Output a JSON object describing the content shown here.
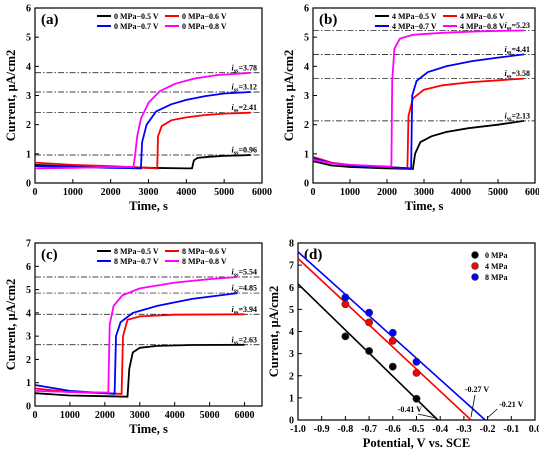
{
  "chart_data": [
    {
      "type": "line",
      "panel_label": "(a)",
      "xlabel": "Time, s",
      "ylabel": "Current, μA/cm2",
      "xlim": [
        0,
        6000
      ],
      "ylim": [
        0,
        6
      ],
      "xticks": [
        0,
        1000,
        2000,
        3000,
        4000,
        5000,
        6000
      ],
      "yticks": [
        0,
        1,
        2,
        3,
        4,
        5,
        6
      ],
      "legend_position": "top",
      "series": [
        {
          "name": "0 MPa−0.5 V",
          "color": "#000000",
          "points": [
            [
              0,
              0.62
            ],
            [
              1000,
              0.57
            ],
            [
              2000,
              0.54
            ],
            [
              3000,
              0.52
            ],
            [
              4000,
              0.5
            ],
            [
              4150,
              0.5
            ],
            [
              4200,
              0.78
            ],
            [
              4300,
              0.86
            ],
            [
              4600,
              0.9
            ],
            [
              5000,
              0.93
            ],
            [
              5500,
              0.95
            ],
            [
              5700,
              0.96
            ]
          ]
        },
        {
          "name": "0 MPa−0.6 V",
          "color": "#ff0000",
          "points": [
            [
              0,
              0.7
            ],
            [
              1000,
              0.62
            ],
            [
              2000,
              0.58
            ],
            [
              3000,
              0.52
            ],
            [
              3230,
              0.5
            ],
            [
              3250,
              1.6
            ],
            [
              3350,
              1.95
            ],
            [
              3600,
              2.15
            ],
            [
              4000,
              2.25
            ],
            [
              4500,
              2.33
            ],
            [
              5000,
              2.38
            ],
            [
              5700,
              2.41
            ]
          ]
        },
        {
          "name": "0 MPa−0.7 V",
          "color": "#0000ff",
          "points": [
            [
              0,
              0.58
            ],
            [
              1000,
              0.55
            ],
            [
              2000,
              0.52
            ],
            [
              2800,
              0.5
            ],
            [
              2830,
              1.4
            ],
            [
              2950,
              2.0
            ],
            [
              3200,
              2.45
            ],
            [
              3600,
              2.7
            ],
            [
              4000,
              2.85
            ],
            [
              4500,
              2.98
            ],
            [
              5000,
              3.07
            ],
            [
              5700,
              3.12
            ]
          ]
        },
        {
          "name": "0 MPa−0.8 V",
          "color": "#ff00ff",
          "points": [
            [
              0,
              0.5
            ],
            [
              1000,
              0.52
            ],
            [
              2000,
              0.55
            ],
            [
              2600,
              0.55
            ],
            [
              2640,
              0.9
            ],
            [
              2700,
              1.6
            ],
            [
              2800,
              2.2
            ],
            [
              3000,
              2.75
            ],
            [
              3300,
              3.15
            ],
            [
              3700,
              3.4
            ],
            [
              4200,
              3.58
            ],
            [
              4800,
              3.7
            ],
            [
              5700,
              3.78
            ]
          ]
        }
      ],
      "reference_lines": [
        0.96,
        2.41,
        3.12,
        3.78
      ],
      "annotations": [
        {
          "prefix": "i",
          "sub": "ss",
          "text": "=3.78",
          "y": 3.78
        },
        {
          "prefix": "i",
          "sub": "ss",
          "text": "=3.12",
          "y": 3.12
        },
        {
          "prefix": "i",
          "sub": "ss",
          "text": "=2.41",
          "y": 2.41
        },
        {
          "prefix": "i",
          "sub": "ss",
          "text": "=0.96",
          "y": 0.96
        }
      ]
    },
    {
      "type": "line",
      "panel_label": "(b)",
      "xlabel": "Time, s",
      "ylabel": "Current, μA/cm2",
      "xlim": [
        0,
        6000
      ],
      "ylim": [
        0,
        6
      ],
      "xticks": [
        0,
        1000,
        2000,
        3000,
        4000,
        5000,
        6000
      ],
      "yticks": [
        0,
        1,
        2,
        3,
        4,
        5,
        6
      ],
      "legend_position": "top",
      "series": [
        {
          "name": "4 MPa−0.5 V",
          "color": "#000000",
          "points": [
            [
              0,
              0.75
            ],
            [
              500,
              0.6
            ],
            [
              1000,
              0.55
            ],
            [
              2000,
              0.5
            ],
            [
              2700,
              0.48
            ],
            [
              2760,
              1.0
            ],
            [
              2900,
              1.4
            ],
            [
              3200,
              1.6
            ],
            [
              3600,
              1.75
            ],
            [
              4200,
              1.88
            ],
            [
              5000,
              2.0
            ],
            [
              5700,
              2.13
            ]
          ]
        },
        {
          "name": "4 MPa−0.6 V",
          "color": "#ff0000",
          "points": [
            [
              0,
              0.9
            ],
            [
              500,
              0.7
            ],
            [
              1000,
              0.62
            ],
            [
              2000,
              0.55
            ],
            [
              2550,
              0.5
            ],
            [
              2580,
              2.3
            ],
            [
              2700,
              2.9
            ],
            [
              3000,
              3.2
            ],
            [
              3500,
              3.35
            ],
            [
              4200,
              3.45
            ],
            [
              5000,
              3.52
            ],
            [
              5700,
              3.58
            ]
          ]
        },
        {
          "name": "4 MPa−0.7 V",
          "color": "#0000ff",
          "points": [
            [
              0,
              0.85
            ],
            [
              500,
              0.68
            ],
            [
              1000,
              0.6
            ],
            [
              2000,
              0.55
            ],
            [
              2650,
              0.5
            ],
            [
              2680,
              3.0
            ],
            [
              2800,
              3.5
            ],
            [
              3100,
              3.8
            ],
            [
              3600,
              4.0
            ],
            [
              4300,
              4.18
            ],
            [
              5000,
              4.3
            ],
            [
              5700,
              4.41
            ]
          ]
        },
        {
          "name": "4 MPa−0.8 V",
          "color": "#ff00ff",
          "points": [
            [
              0,
              0.8
            ],
            [
              500,
              0.68
            ],
            [
              1000,
              0.62
            ],
            [
              1800,
              0.58
            ],
            [
              2120,
              0.56
            ],
            [
              2140,
              3.5
            ],
            [
              2200,
              4.6
            ],
            [
              2350,
              4.95
            ],
            [
              2700,
              5.08
            ],
            [
              3500,
              5.15
            ],
            [
              4500,
              5.2
            ],
            [
              5700,
              5.23
            ]
          ]
        }
      ],
      "reference_lines": [
        2.13,
        3.58,
        4.41,
        5.23
      ],
      "annotations": [
        {
          "prefix": "i",
          "sub": "ss",
          "text": "=5.23",
          "y": 5.23
        },
        {
          "prefix": "i",
          "sub": "ss",
          "text": "=4.41",
          "y": 4.41
        },
        {
          "prefix": "i",
          "sub": "ss",
          "text": "=3.58",
          "y": 3.58
        },
        {
          "prefix": "i",
          "sub": "ss",
          "text": "=2.13",
          "y": 2.13
        }
      ]
    },
    {
      "type": "line",
      "panel_label": "(c)",
      "xlabel": "Time, s",
      "ylabel": "Current, μA/cm2",
      "xlim": [
        0,
        6500
      ],
      "ylim": [
        0,
        7
      ],
      "xticks": [
        0,
        1000,
        2000,
        3000,
        4000,
        5000,
        6000
      ],
      "yticks": [
        0,
        1,
        2,
        3,
        4,
        5,
        6,
        7
      ],
      "legend_position": "top",
      "series": [
        {
          "name": "8 MPa−0.5 V",
          "color": "#000000",
          "points": [
            [
              0,
              0.55
            ],
            [
              1000,
              0.45
            ],
            [
              2000,
              0.42
            ],
            [
              2650,
              0.4
            ],
            [
              2700,
              1.6
            ],
            [
              2800,
              2.3
            ],
            [
              3000,
              2.5
            ],
            [
              3500,
              2.58
            ],
            [
              4500,
              2.62
            ],
            [
              6000,
              2.63
            ]
          ]
        },
        {
          "name": "8 MPa−0.6 V",
          "color": "#ff0000",
          "points": [
            [
              0,
              0.75
            ],
            [
              1000,
              0.6
            ],
            [
              2000,
              0.55
            ],
            [
              2480,
              0.52
            ],
            [
              2520,
              3.0
            ],
            [
              2650,
              3.7
            ],
            [
              3000,
              3.85
            ],
            [
              4000,
              3.92
            ],
            [
              6000,
              3.94
            ]
          ]
        },
        {
          "name": "8 MPa−0.7 V",
          "color": "#0000ff",
          "points": [
            [
              0,
              0.9
            ],
            [
              1000,
              0.65
            ],
            [
              2000,
              0.55
            ],
            [
              2280,
              0.52
            ],
            [
              2320,
              3.0
            ],
            [
              2450,
              3.6
            ],
            [
              2800,
              4.0
            ],
            [
              3500,
              4.3
            ],
            [
              4500,
              4.6
            ],
            [
              5800,
              4.85
            ]
          ]
        },
        {
          "name": "8 MPa−0.8 V",
          "color": "#ff00ff",
          "points": [
            [
              0,
              0.65
            ],
            [
              1000,
              0.6
            ],
            [
              2000,
              0.58
            ],
            [
              2100,
              0.58
            ],
            [
              2140,
              3.5
            ],
            [
              2250,
              4.3
            ],
            [
              2500,
              4.75
            ],
            [
              3000,
              5.05
            ],
            [
              4000,
              5.3
            ],
            [
              5000,
              5.45
            ],
            [
              5800,
              5.54
            ]
          ]
        }
      ],
      "reference_lines": [
        2.63,
        3.94,
        4.85,
        5.54
      ],
      "annotations": [
        {
          "prefix": "i",
          "sub": "ss",
          "text": "=5.54",
          "y": 5.54
        },
        {
          "prefix": "i",
          "sub": "ss",
          "text": "=4.85",
          "y": 4.85
        },
        {
          "prefix": "i",
          "sub": "ss",
          "text": "=3.94",
          "y": 3.94
        },
        {
          "prefix": "i",
          "sub": "ss",
          "text": "=2.63",
          "y": 2.63
        }
      ]
    },
    {
      "type": "scatter",
      "panel_label": "(d)",
      "xlabel": "Potential, V vs. SCE",
      "ylabel": "Current, μA/cm2",
      "xlim": [
        -1.0,
        0.0
      ],
      "ylim": [
        0,
        8
      ],
      "xticks": [
        -1.0,
        -0.9,
        -0.8,
        -0.7,
        -0.6,
        -0.5,
        -0.4,
        -0.3,
        -0.2,
        -0.1,
        0.0
      ],
      "xtick_labels": [
        "-1.0",
        "-0.9",
        "-0.8",
        "-0.7",
        "-0.6",
        "-0.5",
        "-0.4",
        "-0.3",
        "-0.2",
        "-0.1",
        "0.0"
      ],
      "yticks": [
        0,
        1,
        2,
        3,
        4,
        5,
        6,
        7,
        8
      ],
      "legend_position": "top-right",
      "series": [
        {
          "name": "0 MPa",
          "color": "#000000",
          "x": [
            -0.8,
            -0.7,
            -0.6,
            -0.5
          ],
          "y": [
            3.78,
            3.12,
            2.41,
            0.96
          ],
          "fit": [
            [
              -1.0,
              6.15
            ],
            [
              -0.41,
              0
            ]
          ]
        },
        {
          "name": "4 MPa",
          "color": "#ff0000",
          "x": [
            -0.8,
            -0.7,
            -0.6,
            -0.5
          ],
          "y": [
            5.23,
            4.41,
            3.58,
            2.13
          ],
          "fit": [
            [
              -1.0,
              7.3
            ],
            [
              -0.27,
              0
            ]
          ]
        },
        {
          "name": "8 MPa",
          "color": "#0000ff",
          "x": [
            -0.8,
            -0.7,
            -0.6,
            -0.5
          ],
          "y": [
            5.54,
            4.85,
            3.94,
            2.63
          ],
          "fit": [
            [
              -1.0,
              7.6
            ],
            [
              -0.21,
              0
            ]
          ]
        }
      ],
      "annotations": [
        {
          "text": "-0.41 V",
          "x": -0.41,
          "y": 0,
          "anchor": "left"
        },
        {
          "text": "-0.27 V",
          "x": -0.27,
          "y": 0,
          "anchor": "above"
        },
        {
          "text": "-0.21 V",
          "x": -0.21,
          "y": 0,
          "anchor": "right"
        }
      ]
    }
  ]
}
